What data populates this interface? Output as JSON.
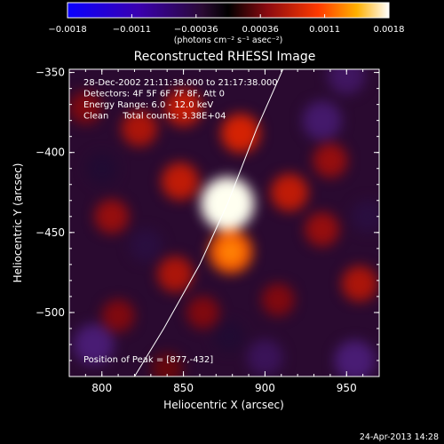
{
  "chart_data": {
    "type": "heatmap",
    "title": "Reconstructed RHESSI Image",
    "xlabel": "Heliocentric X (arcsec)",
    "ylabel": "Heliocentric Y (arcsec)",
    "xlim": [
      780,
      970
    ],
    "ylim": [
      -540,
      -348
    ],
    "xticks": [
      800,
      850,
      900,
      950
    ],
    "yticks": [
      -350,
      -400,
      -450,
      -500
    ],
    "colorbar": {
      "range": [
        -0.0018,
        0.0018
      ],
      "ticks": [
        "-0.0018",
        "-0.0011",
        "-0.00036",
        "0.00036",
        "0.0011",
        "0.0018"
      ],
      "unit_label": "(photons cm⁻² s⁻¹ asec⁻²)"
    },
    "annotations": [
      "28-Dec-2002 21:11:38.000 to 21:17:38.000",
      "Detectors: 4F 5F 6F 7F 8F, Att 0",
      "Energy Range: 6.0 - 12.0 keV",
      "Clean     Total counts: 3.38E+04"
    ],
    "peak_label": "Position of Peak = [877,-432]",
    "peak": [
      877,
      -432
    ],
    "limb": [
      [
        911,
        -348
      ],
      [
        895,
        -385
      ],
      [
        877,
        -432
      ],
      [
        860,
        -470
      ],
      [
        838,
        -510
      ],
      [
        820,
        -540
      ]
    ],
    "sources": [
      {
        "x": 877,
        "y": -432,
        "value": 0.0018
      },
      {
        "x": 879,
        "y": -462,
        "value": 0.0012
      },
      {
        "x": 885,
        "y": -388,
        "value": 0.0009
      },
      {
        "x": 850,
        "y": -372,
        "value": 0.0008
      },
      {
        "x": 823,
        "y": -385,
        "value": 0.0007
      },
      {
        "x": 848,
        "y": -418,
        "value": 0.0008
      },
      {
        "x": 915,
        "y": -425,
        "value": 0.0008
      },
      {
        "x": 940,
        "y": -405,
        "value": 0.0006
      },
      {
        "x": 935,
        "y": -448,
        "value": 0.0006
      },
      {
        "x": 806,
        "y": -440,
        "value": 0.0006
      },
      {
        "x": 845,
        "y": -476,
        "value": 0.0007
      },
      {
        "x": 862,
        "y": -500,
        "value": 0.0005
      },
      {
        "x": 810,
        "y": -502,
        "value": 0.0005
      },
      {
        "x": 958,
        "y": -482,
        "value": 0.0007
      },
      {
        "x": 908,
        "y": -492,
        "value": 0.0005
      },
      {
        "x": 840,
        "y": -535,
        "value": 0.0004
      },
      {
        "x": 790,
        "y": -372,
        "value": 0.0005
      },
      {
        "x": 935,
        "y": -380,
        "value": -0.0009
      },
      {
        "x": 795,
        "y": -520,
        "value": -0.001
      },
      {
        "x": 955,
        "y": -530,
        "value": -0.001
      },
      {
        "x": 900,
        "y": -528,
        "value": -0.0007
      },
      {
        "x": 827,
        "y": -458,
        "value": -0.0005
      },
      {
        "x": 950,
        "y": -352,
        "value": -0.0008
      },
      {
        "x": 800,
        "y": -410,
        "value": -0.0004
      },
      {
        "x": 878,
        "y": -515,
        "value": -0.0004
      },
      {
        "x": 963,
        "y": -440,
        "value": -0.0005
      }
    ]
  },
  "footer": {
    "timestamp": "24-Apr-2013 14:28"
  }
}
